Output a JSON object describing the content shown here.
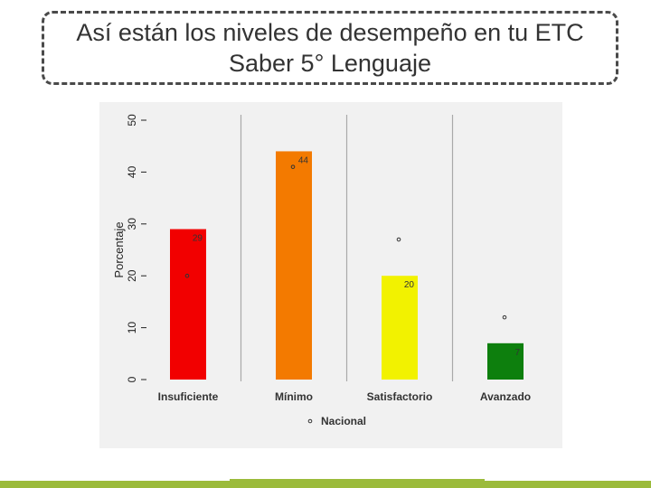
{
  "slide": {
    "title_line1": "Así están los niveles de desempeño en tu ETC",
    "title_line2": "Saber 5° Lenguaje"
  },
  "colors": {
    "accent_bar": "#9bbb3b",
    "panel_bg": "#f1f1f1",
    "gridline": "#a9a9a9"
  },
  "chart_data": {
    "type": "bar",
    "categories": [
      "Insuficiente",
      "Mínimo",
      "Satisfactorio",
      "Avanzado"
    ],
    "values": [
      29,
      44,
      20,
      7
    ],
    "value_labels": [
      "29",
      "44",
      "20",
      "7"
    ],
    "bar_colors": [
      "#f20000",
      "#f37a00",
      "#f2f200",
      "#0d7f0d"
    ],
    "national_values": [
      20,
      41,
      27,
      12
    ],
    "ylabel": "Porcentaje",
    "yticks": [
      0,
      10,
      20,
      30,
      40,
      50
    ],
    "ylim": [
      0,
      50
    ],
    "legend": {
      "marker": "circle",
      "label": "Nacional",
      "position": "bottom"
    },
    "grid": true
  }
}
